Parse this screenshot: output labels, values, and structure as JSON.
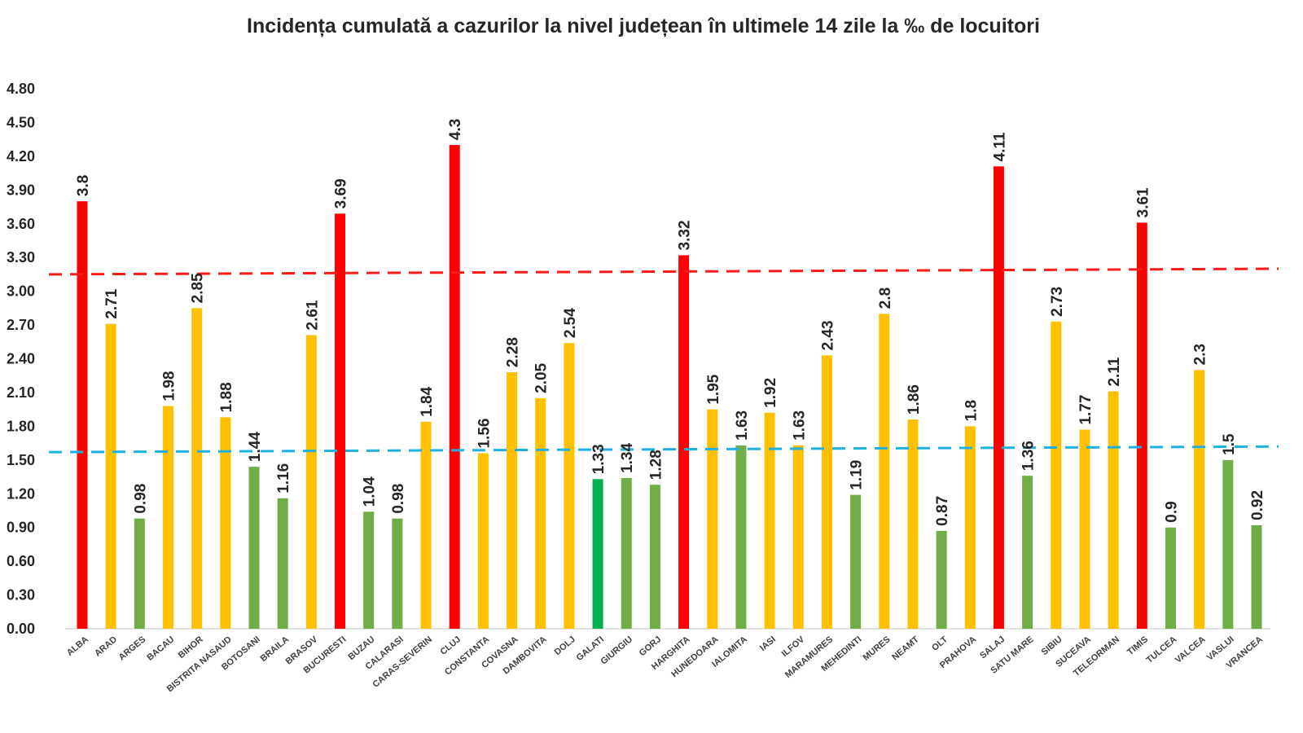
{
  "chart_data": {
    "type": "bar",
    "title": "Incidența cumulată a cazurilor la nivel județean în ultimele 14 zile la ‰ de locuitori",
    "xlabel": "",
    "ylabel": "",
    "ylim": [
      0,
      4.8
    ],
    "yticks": [
      "0.00",
      "0.30",
      "0.60",
      "0.90",
      "1.20",
      "1.50",
      "1.80",
      "2.10",
      "2.40",
      "2.70",
      "3.00",
      "3.30",
      "3.60",
      "3.90",
      "4.20",
      "4.50",
      "4.80"
    ],
    "grid": false,
    "legend": "none",
    "colors": {
      "red": "#ff0000",
      "yellow": "#ffc000",
      "green": "#70ad47",
      "green_bright": "#00b050",
      "red_line": "#ff1a1a",
      "blue_line": "#1fb0e0"
    },
    "reference_lines": [
      {
        "name": "red-threshold",
        "color": "red_line",
        "from": 3.15,
        "to": 3.2
      },
      {
        "name": "blue-threshold",
        "color": "blue_line",
        "from": 1.57,
        "to": 1.62
      }
    ],
    "categories": [
      "ALBA",
      "ARAD",
      "ARGES",
      "BACAU",
      "BIHOR",
      "BISTRITA NASAUD",
      "BOTOSANI",
      "BRAILA",
      "BRASOV",
      "BUCURESTI",
      "BUZAU",
      "CALARASI",
      "CARAS-SEVERIN",
      "CLUJ",
      "CONSTANTA",
      "COVASNA",
      "DAMBOVITA",
      "DOLJ",
      "GALATI",
      "GIURGIU",
      "GORJ",
      "HARGHITA",
      "HUNEDOARA",
      "IALOMITA",
      "IASI",
      "ILFOV",
      "MARAMURES",
      "MEHEDINTI",
      "MURES",
      "NEAMT",
      "OLT",
      "PRAHOVA",
      "SALAJ",
      "SATU MARE",
      "SIBIU",
      "SUCEAVA",
      "TELEORMAN",
      "TIMIS",
      "TULCEA",
      "VALCEA",
      "VASLUI",
      "VRANCEA"
    ],
    "values": [
      3.8,
      2.71,
      0.98,
      1.98,
      2.85,
      1.88,
      1.44,
      1.16,
      2.61,
      3.69,
      1.04,
      0.98,
      1.84,
      4.3,
      1.56,
      2.28,
      2.05,
      2.54,
      1.33,
      1.34,
      1.28,
      3.32,
      1.95,
      1.63,
      1.92,
      1.63,
      2.43,
      1.19,
      2.8,
      1.86,
      0.87,
      1.8,
      4.11,
      1.36,
      2.73,
      1.77,
      2.11,
      3.61,
      0.9,
      2.3,
      1.5,
      0.92
    ],
    "labels": [
      "3.8",
      "2.71",
      "0.98",
      "1.98",
      "2.85",
      "1.88",
      "1.44",
      "1.16",
      "2.61",
      "3.69",
      "1.04",
      "0.98",
      "1.84",
      "4.3",
      "1.56",
      "2.28",
      "2.05",
      "2.54",
      "1.33",
      "1.34",
      "1.28",
      "3.32",
      "1.95",
      "1.63",
      "1.92",
      "1.63",
      "2.43",
      "1.19",
      "2.8",
      "1.86",
      "0.87",
      "1.8",
      "4.11",
      "1.36",
      "2.73",
      "1.77",
      "2.11",
      "3.61",
      "0.9",
      "2.3",
      "1.5",
      "0.92"
    ],
    "bar_colors": [
      "red",
      "yellow",
      "green",
      "yellow",
      "yellow",
      "yellow",
      "green",
      "green",
      "yellow",
      "red",
      "green",
      "green",
      "yellow",
      "red",
      "yellow",
      "yellow",
      "yellow",
      "yellow",
      "green_bright",
      "green",
      "green",
      "red",
      "yellow",
      "green",
      "yellow",
      "yellow",
      "yellow",
      "green",
      "yellow",
      "yellow",
      "green",
      "yellow",
      "red",
      "green",
      "yellow",
      "yellow",
      "yellow",
      "red",
      "green",
      "yellow",
      "green",
      "green"
    ]
  }
}
